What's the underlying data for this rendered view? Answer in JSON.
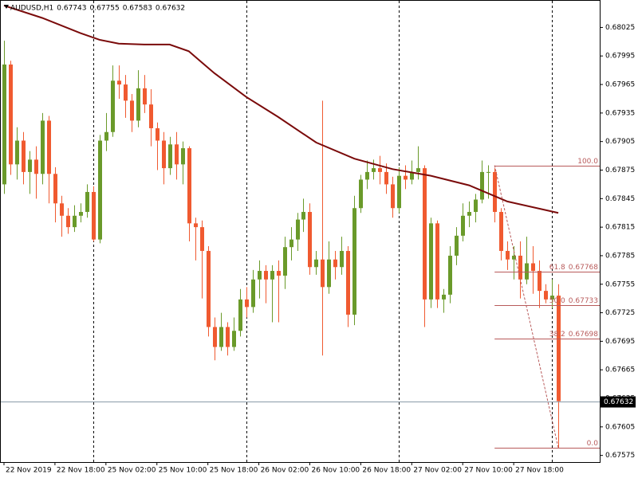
{
  "chart_data": {
    "type": "candlestick",
    "title": "AUDUSD,H1",
    "colors": {
      "up": "#6a9a2a",
      "down": "#f05a30",
      "ma": "#7a0a0a",
      "fib": "#b85a5a",
      "separator": "#000000"
    },
    "open": [
      0.6786,
      0.67986,
      0.67881,
      0.67906,
      0.67873,
      0.67886,
      0.67871,
      0.67927,
      0.67871,
      0.6784,
      0.67827,
      0.67815,
      0.67827,
      0.67831,
      0.67852,
      0.67802,
      0.67906,
      0.67915,
      0.67969,
      0.67965,
      0.67948,
      0.67927,
      0.67961,
      0.67944,
      0.67919,
      0.67906,
      0.67877,
      0.67902,
      0.67881,
      0.67898,
      0.67819,
      0.67815,
      0.6779,
      0.6771,
      0.67689,
      0.6771,
      0.67689,
      0.67706,
      0.67739,
      0.67731,
      0.6776,
      0.67769,
      0.6776,
      0.67769,
      0.67764,
      0.67794,
      0.67802,
      0.67823,
      0.67831,
      0.67773,
      0.67781,
      0.67752,
      0.67781,
      0.67773,
      0.6779,
      0.67723,
      0.67835,
      0.67865,
      0.67873,
      0.67877,
      0.67873,
      0.6786,
      0.67835,
      0.67869,
      0.67865,
      0.67873,
      0.67877,
      0.67739,
      0.67819,
      0.67739,
      0.67744,
      0.67785,
      0.67806,
      0.67827,
      0.67831,
      0.67844,
      0.67873,
      0.67873,
      0.67831,
      0.6779,
      0.67781,
      0.67785,
      0.6776,
      0.67777,
      0.67769,
      0.67748,
      0.67739,
      0.67743
    ],
    "high": [
      0.68011,
      0.6799,
      0.6792,
      0.67915,
      0.67895,
      0.679,
      0.67935,
      0.67932,
      0.67878,
      0.67848,
      0.67835,
      0.67838,
      0.6784,
      0.6786,
      0.67858,
      0.67912,
      0.67935,
      0.67985,
      0.67985,
      0.67975,
      0.67955,
      0.6798,
      0.67975,
      0.6796,
      0.67925,
      0.67915,
      0.6791,
      0.67915,
      0.67905,
      0.679,
      0.67825,
      0.67822,
      0.67795,
      0.6772,
      0.67725,
      0.67715,
      0.6772,
      0.6775,
      0.67752,
      0.6777,
      0.6778,
      0.67775,
      0.67775,
      0.6778,
      0.67805,
      0.67815,
      0.6783,
      0.67845,
      0.6784,
      0.6779,
      0.67948,
      0.678,
      0.6779,
      0.67805,
      0.67795,
      0.67848,
      0.6787,
      0.67885,
      0.67886,
      0.6789,
      0.67882,
      0.67868,
      0.67878,
      0.6788,
      0.67885,
      0.679,
      0.6788,
      0.67825,
      0.67822,
      0.6775,
      0.67795,
      0.67815,
      0.6784,
      0.67842,
      0.6785,
      0.67885,
      0.6788,
      0.67877,
      0.67835,
      0.678,
      0.67795,
      0.678,
      0.67805,
      0.67795,
      0.6778,
      0.67755,
      0.6776,
      0.67755
    ],
    "low": [
      0.6785,
      0.6787,
      0.67865,
      0.6786,
      0.6785,
      0.67845,
      0.6786,
      0.6784,
      0.6782,
      0.67805,
      0.67808,
      0.6781,
      0.6782,
      0.67825,
      0.678,
      0.67798,
      0.67895,
      0.6791,
      0.6795,
      0.6793,
      0.67915,
      0.6792,
      0.67935,
      0.679,
      0.67875,
      0.6786,
      0.6787,
      0.67865,
      0.6786,
      0.678,
      0.6778,
      0.6774,
      0.677,
      0.67675,
      0.67685,
      0.6768,
      0.67685,
      0.677,
      0.6772,
      0.67725,
      0.6774,
      0.67735,
      0.67715,
      0.67715,
      0.6775,
      0.6778,
      0.6779,
      0.6781,
      0.67765,
      0.67765,
      0.6768,
      0.67745,
      0.6776,
      0.67765,
      0.6771,
      0.67712,
      0.6783,
      0.67855,
      0.67865,
      0.6786,
      0.6785,
      0.67825,
      0.6783,
      0.67855,
      0.6786,
      0.67865,
      0.6771,
      0.6773,
      0.6773,
      0.67725,
      0.67735,
      0.67775,
      0.678,
      0.67815,
      0.6782,
      0.6784,
      0.67845,
      0.6782,
      0.6778,
      0.6777,
      0.6776,
      0.6774,
      0.67755,
      0.67745,
      0.6773,
      0.67735,
      0.6773,
      0.67583
    ],
    "close": [
      0.67986,
      0.67881,
      0.67906,
      0.67873,
      0.67886,
      0.67871,
      0.67927,
      0.67871,
      0.6784,
      0.67827,
      0.67815,
      0.67827,
      0.67831,
      0.67852,
      0.67802,
      0.67906,
      0.67915,
      0.67969,
      0.67965,
      0.67948,
      0.67927,
      0.67961,
      0.67944,
      0.67919,
      0.67906,
      0.67877,
      0.67902,
      0.67881,
      0.67898,
      0.67819,
      0.67815,
      0.6779,
      0.6771,
      0.67689,
      0.6771,
      0.67689,
      0.67706,
      0.67739,
      0.67731,
      0.6776,
      0.67769,
      0.6776,
      0.67769,
      0.67764,
      0.67794,
      0.67802,
      0.67823,
      0.67831,
      0.67773,
      0.67781,
      0.67752,
      0.67781,
      0.67773,
      0.6779,
      0.67723,
      0.67835,
      0.67865,
      0.67873,
      0.67877,
      0.67873,
      0.6786,
      0.67835,
      0.67869,
      0.67865,
      0.67873,
      0.67877,
      0.67739,
      0.67819,
      0.67739,
      0.67744,
      0.67785,
      0.67806,
      0.67827,
      0.67831,
      0.67844,
      0.67873,
      0.67873,
      0.67831,
      0.6779,
      0.67781,
      0.67785,
      0.6776,
      0.67777,
      0.67769,
      0.67748,
      0.67739,
      0.67743,
      0.67632
    ],
    "ma": {
      "x": [
        0,
        6,
        12,
        15,
        18,
        22,
        26,
        29,
        33,
        38,
        43,
        49,
        55,
        61,
        67,
        73,
        79,
        87
      ],
      "values": [
        0.68048,
        0.68035,
        0.68019,
        0.68012,
        0.68008,
        0.68007,
        0.68007,
        0.68,
        0.67977,
        0.67952,
        0.67931,
        0.67904,
        0.67887,
        0.67876,
        0.67869,
        0.67859,
        0.67842,
        0.6783
      ]
    },
    "fib": {
      "from_index": 77,
      "to_index": 87,
      "levels": [
        {
          "label": "100.0",
          "price": 0.6788
        },
        {
          "label": "61.8",
          "price": 0.67768,
          "price_label": "0.67768"
        },
        {
          "label": "50.0",
          "price": 0.67733,
          "price_label": "0.67733"
        },
        {
          "label": "38.2",
          "price": 0.67698,
          "price_label": "0.67698"
        },
        {
          "label": "0.0",
          "price": 0.67583
        }
      ]
    },
    "separators": [
      14,
      38,
      62,
      86
    ],
    "xlim": [
      -0.5,
      93.5
    ],
    "xticks": [
      {
        "value": 0,
        "label": "22 Nov 2019"
      },
      {
        "value": 8,
        "label": "22 Nov 18:00"
      },
      {
        "value": 16,
        "label": "25 Nov 02:00"
      },
      {
        "value": 24,
        "label": "25 Nov 10:00"
      },
      {
        "value": 32,
        "label": "25 Nov 18:00"
      },
      {
        "value": 40,
        "label": "26 Nov 02:00"
      },
      {
        "value": 48,
        "label": "26 Nov 10:00"
      },
      {
        "value": 56,
        "label": "26 Nov 18:00"
      },
      {
        "value": 64,
        "label": "27 Nov 02:00"
      },
      {
        "value": 72,
        "label": "27 Nov 10:00"
      },
      {
        "value": 80,
        "label": "27 Nov 18:00"
      }
    ],
    "ylim": [
      0.67568,
      0.68053
    ],
    "yticks": [
      0.68025,
      0.67995,
      0.67965,
      0.67935,
      0.67905,
      0.67875,
      0.67845,
      0.67815,
      0.67785,
      0.67755,
      0.67725,
      0.67695,
      0.67665,
      0.67635,
      0.67605,
      0.67575
    ]
  }
}
